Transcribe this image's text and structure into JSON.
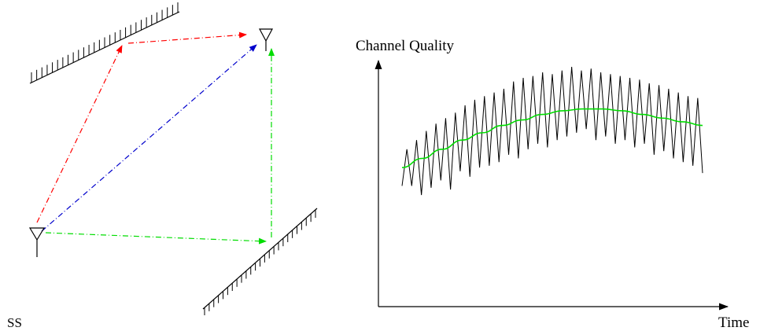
{
  "left_diagram": {
    "ss_label": "SS",
    "path_colors": {
      "reflect_top": "#ff0000",
      "direct": "#0000cc",
      "reflect_bottom": "#00dd00"
    }
  },
  "right_chart": {
    "ylabel": "Channel Quality",
    "xlabel": "Time",
    "trend_color": "#00dd00",
    "fast_color": "#000000"
  },
  "chart_data": {
    "type": "line",
    "title": "",
    "xlabel": "Time",
    "ylabel": "Channel Quality",
    "series": [
      {
        "values": [
          0.35,
          0.55,
          0.35,
          0.6,
          0.3,
          0.65,
          0.34,
          0.69,
          0.38,
          0.72,
          0.33,
          0.75,
          0.43,
          0.79,
          0.4,
          0.82,
          0.45,
          0.84,
          0.46,
          0.86,
          0.48,
          0.88,
          0.52,
          0.92,
          0.5,
          0.94,
          0.55,
          0.95,
          0.58,
          0.97,
          0.56,
          0.96,
          0.6,
          0.98,
          0.62,
          1.0,
          0.64,
          0.98,
          0.66,
          0.99,
          0.6,
          0.97,
          0.62,
          0.96,
          0.58,
          0.95,
          0.6,
          0.94,
          0.56,
          0.93,
          0.58,
          0.91,
          0.52,
          0.9,
          0.54,
          0.88,
          0.5,
          0.86,
          0.48,
          0.84,
          0.46,
          0.83,
          0.42
        ]
      },
      {
        "values": [
          0.45,
          0.5,
          0.55,
          0.6,
          0.64,
          0.68,
          0.71,
          0.74,
          0.76,
          0.77,
          0.77,
          0.76,
          0.74,
          0.72,
          0.7,
          0.68
        ]
      }
    ]
  }
}
